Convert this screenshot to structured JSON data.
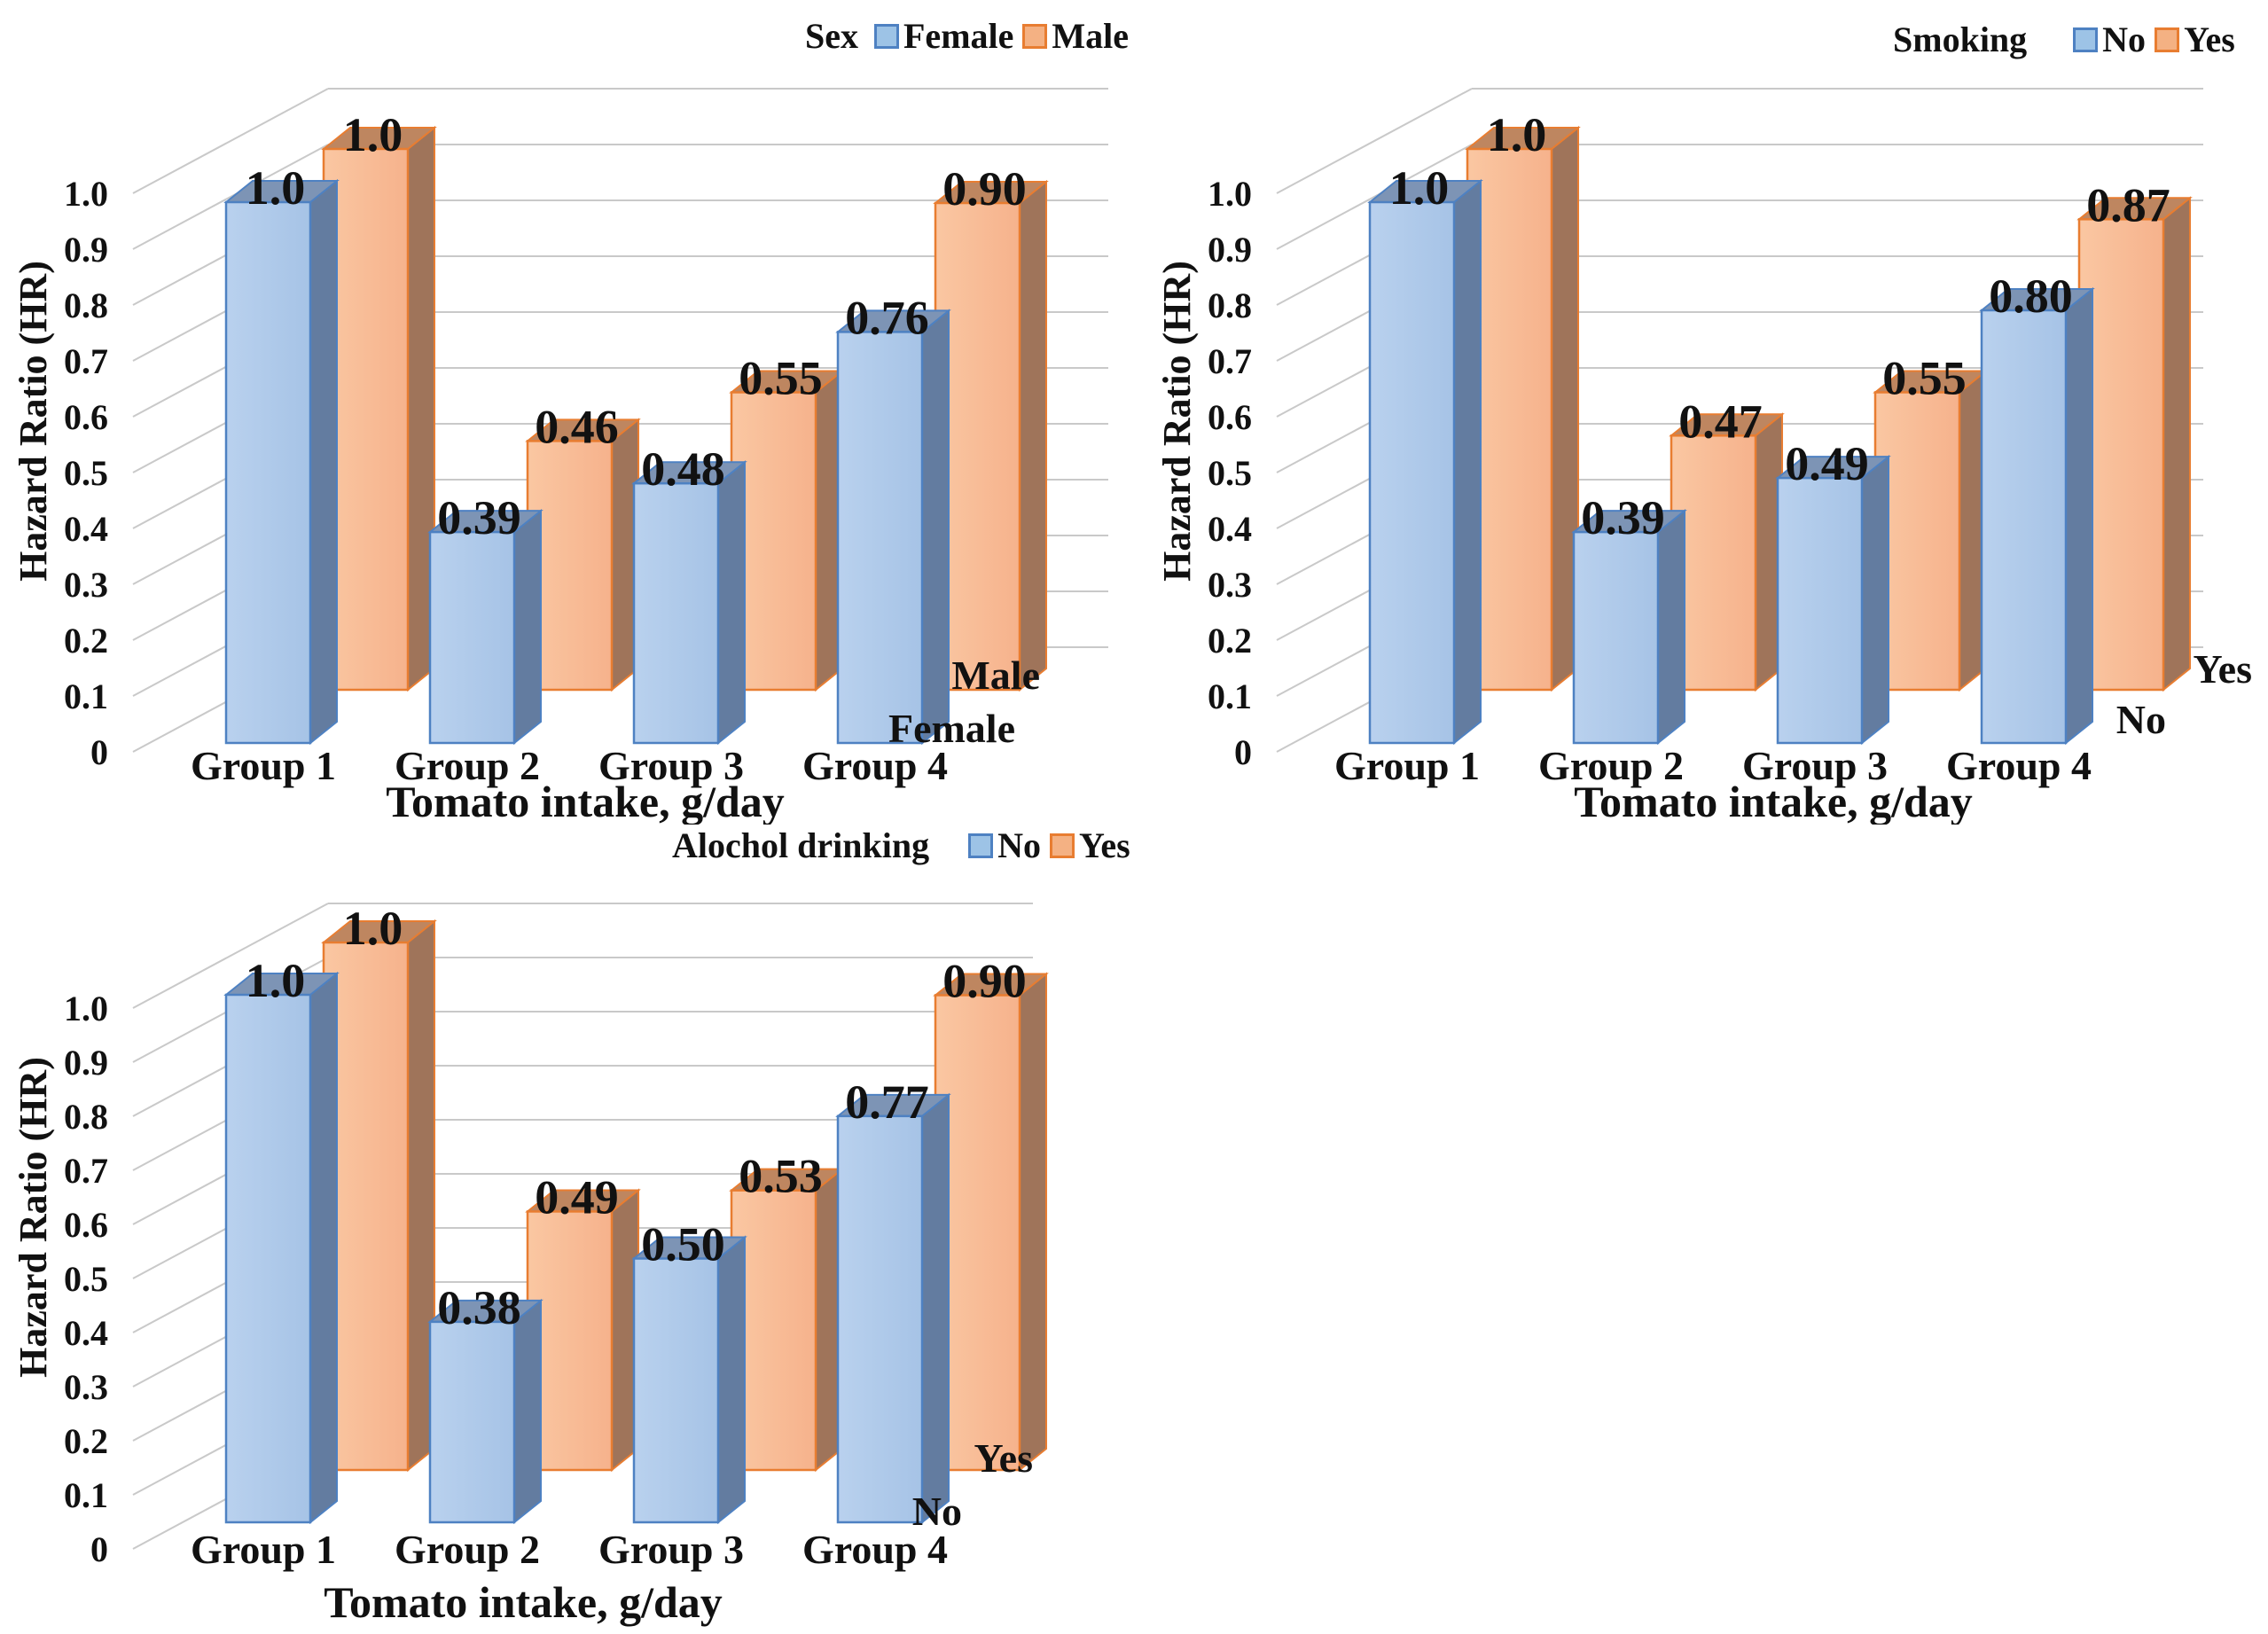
{
  "page": {
    "background": "#ffffff"
  },
  "colors": {
    "series1_fill": "#A6C3E6",
    "series1_fill_light": "#B9D1EE",
    "series1_side": "#637CA0",
    "series1_top": "#7D94B5",
    "series1_border": "#4E81C2",
    "series1_legend_fill": "#9DC3E6",
    "series2_fill": "#F6B28C",
    "series2_fill_light": "#FAC7A2",
    "series2_side": "#9F745A",
    "series2_top": "#BE8660",
    "series2_border": "#E87D31",
    "series2_legend_fill": "#F4B183",
    "gridline": "#C9C9C9",
    "text": "#111111"
  },
  "chart_data": [
    {
      "type": "bar",
      "projection": "3d",
      "legend_title": "Sex",
      "legend_position": "top",
      "grid": true,
      "categories": [
        "Group 1",
        "Group 2",
        "Group 3",
        "Group 4"
      ],
      "series": [
        {
          "name": "Female",
          "depth_row": "front",
          "values": [
            1.0,
            0.39,
            0.48,
            0.76
          ],
          "value_labels": [
            "1.0",
            "0.39",
            "0.48",
            "0.76"
          ]
        },
        {
          "name": "Male",
          "depth_row": "back",
          "values": [
            1.0,
            0.46,
            0.55,
            0.9
          ],
          "value_labels": [
            "1.0",
            "0.46",
            "0.55",
            "0.90"
          ]
        }
      ],
      "depth_axis_labels": [
        "Male",
        "Female"
      ],
      "xlabel": "Tomato intake, g/day",
      "ylabel": "Hazard Ratio (HR)",
      "y_tick_labels": [
        "1.0",
        "0.9",
        "0.8",
        "0.7",
        "0.6",
        "0.5",
        "0.4",
        "0.3",
        "0.2",
        "0.1",
        "0"
      ],
      "ylim": [
        0,
        1.05
      ]
    },
    {
      "type": "bar",
      "projection": "3d",
      "legend_title": "Smoking",
      "legend_position": "top",
      "grid": true,
      "categories": [
        "Group 1",
        "Group 2",
        "Group 3",
        "Group 4"
      ],
      "series": [
        {
          "name": "No",
          "depth_row": "front",
          "values": [
            1.0,
            0.39,
            0.49,
            0.8
          ],
          "value_labels": [
            "1.0",
            "0.39",
            "0.49",
            "0.80"
          ]
        },
        {
          "name": "Yes",
          "depth_row": "back",
          "values": [
            1.0,
            0.47,
            0.55,
            0.87
          ],
          "value_labels": [
            "1.0",
            "0.47",
            "0.55",
            "0.87"
          ]
        }
      ],
      "depth_axis_labels": [
        "Yes",
        "No"
      ],
      "xlabel": "Tomato intake, g/day",
      "ylabel": "Hazard Ratio (HR)",
      "y_tick_labels": [
        "1.0",
        "0.9",
        "0.8",
        "0.7",
        "0.6",
        "0.5",
        "0.4",
        "0.3",
        "0.2",
        "0.1",
        "0"
      ],
      "ylim": [
        0,
        1.05
      ]
    },
    {
      "type": "bar",
      "projection": "3d",
      "legend_title": "Alochol drinking",
      "legend_position": "top",
      "grid": true,
      "categories": [
        "Group 1",
        "Group 2",
        "Group 3",
        "Group 4"
      ],
      "series": [
        {
          "name": "No",
          "depth_row": "front",
          "values": [
            1.0,
            0.38,
            0.5,
            0.77
          ],
          "value_labels": [
            "1.0",
            "0.38",
            "0.50",
            "0.77"
          ]
        },
        {
          "name": "Yes",
          "depth_row": "back",
          "values": [
            1.0,
            0.49,
            0.53,
            0.9
          ],
          "value_labels": [
            "1.0",
            "0.49",
            "0.53",
            "0.90"
          ]
        }
      ],
      "depth_axis_labels": [
        "Yes",
        "No"
      ],
      "xlabel": "Tomato intake, g/day",
      "ylabel": "Hazard Ratio (HR)",
      "y_tick_labels": [
        "1.0",
        "0.9",
        "0.8",
        "0.7",
        "0.6",
        "0.5",
        "0.4",
        "0.3",
        "0.2",
        "0.1",
        "0"
      ],
      "ylim": [
        0,
        1.05
      ]
    }
  ]
}
